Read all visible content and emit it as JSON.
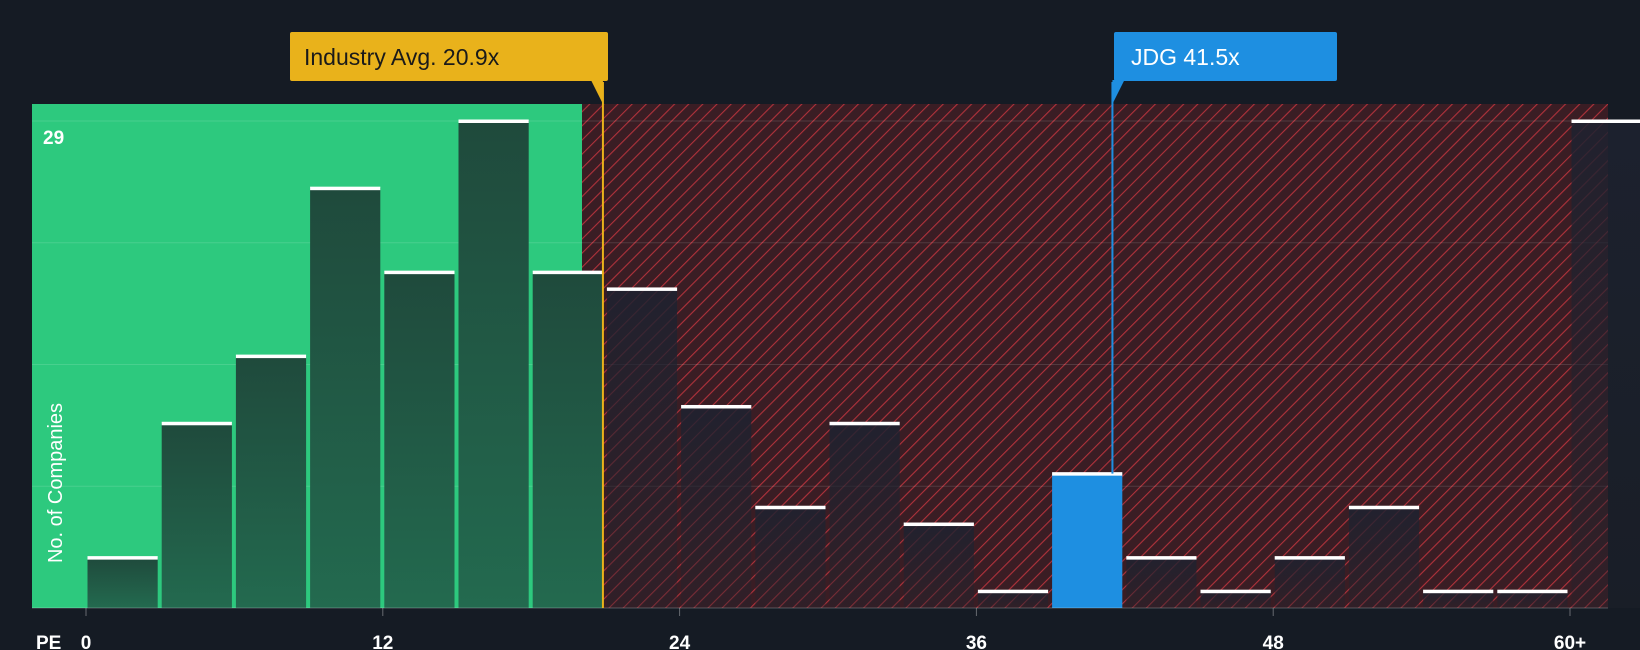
{
  "chart_data": {
    "type": "bar",
    "xlabel": "PE",
    "ylabel": "No. of Companies",
    "x_range": [
      0,
      61.5
    ],
    "y_range": [
      0,
      30
    ],
    "ymax_label": "29",
    "bin_width": 3,
    "bins": [
      {
        "x": 0,
        "value": 3
      },
      {
        "x": 3,
        "value": 11
      },
      {
        "x": 6,
        "value": 15
      },
      {
        "x": 9,
        "value": 25
      },
      {
        "x": 12,
        "value": 20
      },
      {
        "x": 15,
        "value": 29
      },
      {
        "x": 18,
        "value": 20
      },
      {
        "x": 21,
        "value": 19
      },
      {
        "x": 24,
        "value": 12
      },
      {
        "x": 27,
        "value": 6
      },
      {
        "x": 30,
        "value": 11
      },
      {
        "x": 33,
        "value": 5
      },
      {
        "x": 36,
        "value": 1
      },
      {
        "x": 39,
        "value": 8,
        "highlight": true
      },
      {
        "x": 42,
        "value": 3
      },
      {
        "x": 45,
        "value": 1
      },
      {
        "x": 48,
        "value": 3
      },
      {
        "x": 51,
        "value": 6
      },
      {
        "x": 54,
        "value": 1
      },
      {
        "x": 57,
        "value": 1
      },
      {
        "x": 60,
        "value": 29
      }
    ],
    "ticks": [
      {
        "value": 0,
        "label": "0"
      },
      {
        "value": 12,
        "label": "12"
      },
      {
        "value": 24,
        "label": "24"
      },
      {
        "value": 36,
        "label": "36"
      },
      {
        "value": 48,
        "label": "48"
      },
      {
        "value": 60,
        "label": "60+"
      }
    ],
    "gridlines": [
      7.25,
      14.5,
      21.75,
      29
    ],
    "industry_avg": {
      "value": 20.9,
      "label": "Industry Avg. 20.9x"
    },
    "company": {
      "value": 41.5,
      "label": "JDG 41.5x"
    },
    "colors": {
      "background": "#151b24",
      "fair_zone": "#2dc97e",
      "over_zone": "#9c2e35",
      "bar_green_top": "#1f4a3c",
      "bar_green_bottom": "#246b50",
      "bar_dark": "#1e222e",
      "bar_highlight": "#1e8fe1",
      "bar_cap": "#ffffff",
      "industry": "#e9b21b",
      "company": "#1e8fe1",
      "axis_text": "#ffffff"
    }
  }
}
